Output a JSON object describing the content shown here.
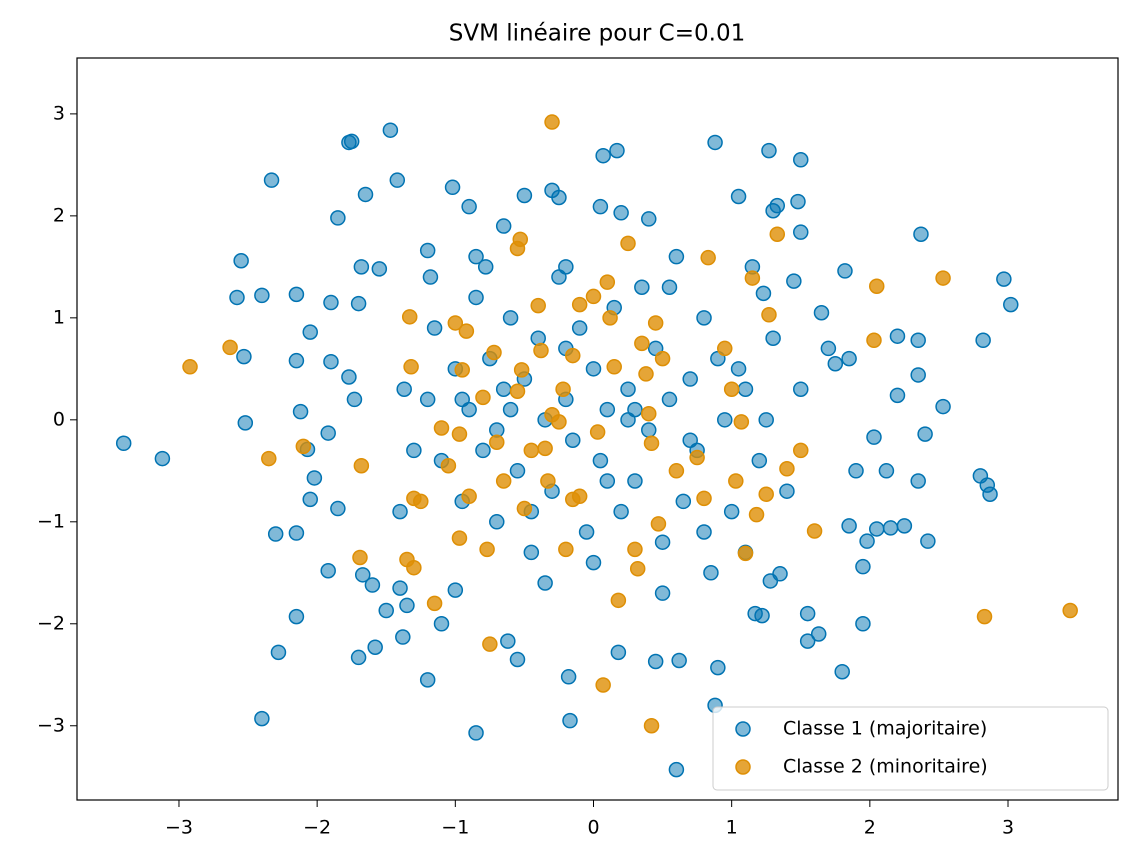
{
  "chart_data": {
    "type": "scatter",
    "title": "SVM linéaire pour C=0.01",
    "xlim": [
      -3.738,
      3.796
    ],
    "ylim": [
      -3.728,
      3.548
    ],
    "xticks": [
      {
        "value": -3,
        "label": "−3"
      },
      {
        "value": -2,
        "label": "−2"
      },
      {
        "value": -1,
        "label": "−1"
      },
      0,
      1,
      2,
      3
    ],
    "yticks": [
      {
        "value": -3,
        "label": "−3"
      },
      {
        "value": -2,
        "label": "−2"
      },
      {
        "value": -1,
        "label": "−1"
      },
      0,
      1,
      2,
      3
    ],
    "legend": "lower right",
    "series": [
      {
        "name": "Classe 1 (majoritaire)",
        "color": "#0173b2",
        "x": [
          -3.4,
          -3.12,
          -2.4,
          -2.33,
          -2.3,
          -2.28,
          -2.55,
          -2.58,
          -2.4,
          -2.53,
          -2.52,
          -2.15,
          -2.15,
          -2.12,
          -2.15,
          -2.15,
          -2.07,
          -2.05,
          -2.05,
          -2.02,
          -1.92,
          -1.9,
          -1.9,
          -1.92,
          -1.85,
          -1.85,
          -1.77,
          -1.77,
          -1.75,
          -1.73,
          -1.7,
          -1.7,
          -1.68,
          -1.67,
          -1.65,
          -1.6,
          -1.58,
          -1.55,
          -1.5,
          -1.47,
          -1.42,
          -1.4,
          -1.38,
          -1.37,
          -1.35,
          -1.2,
          -1.2,
          -1.18,
          -1.1,
          -1.0,
          -1.02,
          -0.9,
          -0.85,
          -0.78,
          -0.65,
          -0.62,
          -0.55,
          -0.5,
          -0.3,
          -0.25,
          -0.18,
          -0.17,
          0.05,
          0.07,
          0.17,
          0.18,
          0.2,
          0.4,
          0.45,
          0.6,
          0.62,
          0.88,
          0.88,
          0.9,
          1.05,
          1.1,
          1.17,
          1.22,
          1.23,
          1.27,
          1.28,
          1.3,
          1.33,
          1.35,
          1.45,
          1.48,
          1.5,
          1.5,
          1.55,
          1.55,
          1.63,
          1.65,
          1.7,
          1.75,
          1.82,
          1.85,
          1.85,
          1.9,
          1.95,
          1.95,
          1.98,
          2.03,
          2.05,
          2.12,
          2.15,
          2.2,
          2.2,
          2.25,
          2.35,
          2.35,
          2.35,
          2.37,
          2.4,
          2.42,
          2.53,
          2.8,
          2.82,
          2.85,
          2.87,
          2.97,
          3.02,
          1.8,
          -1.2,
          -1.1,
          -1.0,
          -0.95,
          -0.9,
          -0.85,
          -0.8,
          -0.75,
          -0.7,
          -0.65,
          -0.6,
          -0.55,
          -0.5,
          -0.45,
          -0.4,
          -0.35,
          -0.3,
          -0.25,
          -0.2,
          -0.15,
          -0.1,
          -0.05,
          0.0,
          0.05,
          0.1,
          0.15,
          0.2,
          0.25,
          0.3,
          0.35,
          0.4,
          0.45,
          0.5,
          0.55,
          0.6,
          0.65,
          0.7,
          0.75,
          0.8,
          0.85,
          0.9,
          0.95,
          1.0,
          1.1,
          1.2,
          1.3,
          -1.3,
          -1.15,
          -0.95,
          -0.7,
          -0.45,
          -0.2,
          0.1,
          0.3,
          0.55,
          0.8,
          1.05,
          1.25,
          1.4,
          -1.4,
          -0.85,
          -0.35,
          0.25,
          0.7,
          1.15,
          1.5,
          -0.6,
          0.0,
          0.5,
          -0.2
        ],
        "values": [
          -0.23,
          -0.38,
          -2.93,
          2.35,
          -1.12,
          -2.28,
          1.56,
          1.2,
          1.22,
          0.62,
          -0.03,
          1.23,
          0.58,
          0.08,
          -1.11,
          -1.93,
          -0.29,
          -0.78,
          0.86,
          -0.57,
          -1.48,
          0.57,
          1.15,
          -0.13,
          -0.87,
          1.98,
          0.42,
          2.72,
          2.73,
          0.2,
          -2.33,
          1.14,
          1.5,
          -1.52,
          2.21,
          -1.62,
          -2.23,
          1.48,
          -1.87,
          2.84,
          2.35,
          -1.65,
          -2.13,
          0.3,
          -1.82,
          -2.55,
          1.66,
          1.4,
          -2.0,
          -1.67,
          2.28,
          2.09,
          -3.07,
          1.5,
          1.9,
          -2.17,
          -2.35,
          2.2,
          2.25,
          2.18,
          -2.52,
          -2.95,
          2.09,
          2.59,
          2.64,
          -2.28,
          2.03,
          1.97,
          -2.37,
          -3.43,
          -2.36,
          2.72,
          -2.8,
          -2.43,
          2.19,
          -1.3,
          -1.9,
          -1.92,
          1.24,
          2.64,
          -1.58,
          2.05,
          2.1,
          -1.51,
          1.36,
          2.14,
          2.55,
          1.84,
          -1.9,
          -2.17,
          -2.1,
          1.05,
          0.7,
          0.55,
          1.46,
          0.6,
          -1.04,
          -0.5,
          -1.44,
          -2.0,
          -1.19,
          -0.17,
          -1.07,
          -0.5,
          -1.06,
          0.82,
          0.24,
          -1.04,
          0.44,
          0.78,
          -0.6,
          1.82,
          -0.14,
          -1.19,
          0.13,
          -0.55,
          0.78,
          -0.64,
          -0.73,
          1.38,
          1.13,
          -2.47,
          0.2,
          -0.4,
          0.5,
          -0.8,
          0.1,
          1.2,
          -0.3,
          0.6,
          -1.0,
          0.3,
          1.0,
          -0.5,
          0.4,
          -1.3,
          0.8,
          0.0,
          -0.7,
          1.4,
          0.2,
          -0.2,
          0.9,
          -1.1,
          0.5,
          -0.4,
          0.1,
          1.1,
          -0.9,
          0.3,
          -0.6,
          1.3,
          -0.1,
          0.7,
          -1.2,
          0.2,
          1.6,
          -0.8,
          0.4,
          -0.3,
          1.0,
          -1.5,
          0.6,
          0.0,
          -0.9,
          0.3,
          -0.4,
          0.8,
          -0.3,
          0.9,
          0.2,
          -0.1,
          -0.9,
          0.7,
          -0.6,
          0.1,
          1.3,
          -1.1,
          0.5,
          0.0,
          -0.7,
          -0.9,
          1.6,
          -1.6,
          0.0,
          -0.2,
          1.5,
          0.3,
          0.1,
          -1.4,
          -1.7,
          1.5
        ]
      },
      {
        "name": "Classe 2 (minoritaire)",
        "color": "#de8f05",
        "x": [
          -2.92,
          -2.63,
          -2.35,
          -2.1,
          -1.68,
          -1.69,
          -1.33,
          -1.32,
          -1.35,
          -1.3,
          -1.3,
          -1.25,
          -1.15,
          -1.1,
          -1.05,
          -1.0,
          -0.97,
          -0.97,
          -0.92,
          -0.95,
          -0.9,
          -0.8,
          -0.77,
          -0.75,
          -0.72,
          -0.7,
          -0.65,
          -0.55,
          -0.53,
          -0.52,
          -0.55,
          -0.5,
          -0.45,
          -0.4,
          -0.38,
          -0.35,
          -0.33,
          -0.3,
          -0.3,
          -0.25,
          -0.22,
          -0.2,
          -0.15,
          -0.15,
          -0.1,
          -0.1,
          0.0,
          0.03,
          0.07,
          0.1,
          0.12,
          0.15,
          0.18,
          0.25,
          0.3,
          0.32,
          0.35,
          0.38,
          0.4,
          0.42,
          0.42,
          0.45,
          0.47,
          0.5,
          0.6,
          0.75,
          0.8,
          0.83,
          0.95,
          1.0,
          1.03,
          1.07,
          1.1,
          1.15,
          1.18,
          1.25,
          1.27,
          1.33,
          1.4,
          1.5,
          1.6,
          2.03,
          2.05,
          2.53,
          2.83,
          3.45
        ],
        "values": [
          0.52,
          0.71,
          -0.38,
          -0.26,
          -0.45,
          -1.35,
          1.01,
          0.52,
          -1.37,
          -1.45,
          -0.77,
          -0.8,
          -1.8,
          -0.08,
          -0.45,
          0.95,
          -0.14,
          -1.16,
          0.87,
          0.49,
          -0.75,
          0.22,
          -1.27,
          -2.2,
          0.66,
          -0.22,
          -0.6,
          1.68,
          1.77,
          0.49,
          0.28,
          -0.87,
          -0.3,
          1.12,
          0.68,
          -0.28,
          -0.6,
          2.92,
          0.05,
          -0.02,
          0.3,
          -1.27,
          0.63,
          -0.78,
          1.13,
          -0.75,
          1.21,
          -0.12,
          -2.6,
          1.35,
          1.0,
          0.52,
          -1.77,
          1.73,
          -1.27,
          -1.46,
          0.75,
          0.45,
          0.06,
          -0.23,
          -3.0,
          0.95,
          -1.02,
          0.6,
          -0.5,
          -0.37,
          -0.77,
          1.59,
          0.7,
          0.3,
          -0.6,
          -0.02,
          -1.31,
          1.39,
          -0.93,
          -0.73,
          1.03,
          1.82,
          -0.48,
          -0.3,
          -1.09,
          0.78,
          1.31,
          1.39,
          -1.93,
          -1.87
        ]
      }
    ]
  }
}
